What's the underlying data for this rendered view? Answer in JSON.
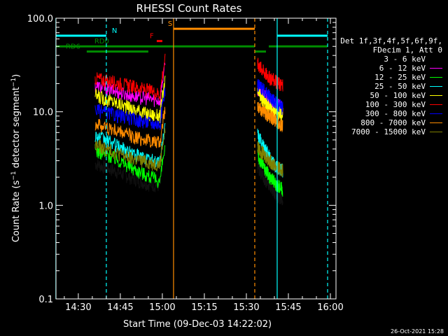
{
  "chart_data": {
    "type": "line",
    "title": "RHESSI Count Rates",
    "xlabel": "Start Time (09-Dec-03 14:22:02)",
    "ylabel": "Count Rate (s^-1 detector segment^-1)",
    "ylabel_parts": {
      "main": "Count Rate (s",
      "exp1": "−1",
      "mid": " detector segment",
      "exp2": "−1",
      "end": ")"
    },
    "x_scale": "time",
    "xlim": [
      "14:22:02",
      "16:02:00"
    ],
    "xticks": [
      "14:30",
      "14:45",
      "15:00",
      "15:15",
      "15:30",
      "15:45",
      "16:00"
    ],
    "y_scale": "log",
    "ylim": [
      0.1,
      100.0
    ],
    "yticks": [
      "0.1",
      "1.0",
      "10.0",
      "100.0"
    ],
    "grid": false,
    "legend_position": "right",
    "legend_header": [
      "Det 1f,3f,4f,5f,6f,9f,",
      "FDecim 1, Att 0"
    ],
    "series": [
      {
        "name": "3 - 6 keV",
        "color": "#000000",
        "values_start": [
          2.8,
          2.4,
          2.0,
          1.7,
          1.6
        ],
        "values_end": [
          2.6,
          2.0,
          1.6,
          1.3,
          1.2
        ]
      },
      {
        "name": "6 - 12 keV",
        "color": "#ff00ff",
        "values_start": [
          19,
          17,
          15,
          14,
          13
        ],
        "values_end": [
          18,
          15,
          13,
          12,
          11
        ]
      },
      {
        "name": "12 - 25 keV",
        "color": "#00ff00",
        "values_start": [
          3.9,
          3.3,
          2.6,
          2.1,
          1.7
        ],
        "values_end": [
          3.4,
          2.6,
          2.0,
          1.7,
          1.5
        ]
      },
      {
        "name": "25 - 50 keV",
        "color": "#00ffff",
        "values_start": [
          5.6,
          4.6,
          3.7,
          3.1,
          2.9
        ],
        "values_end": [
          5.8,
          4.2,
          3.2,
          2.6,
          2.4
        ]
      },
      {
        "name": "50 - 100 keV",
        "color": "#ffff00",
        "values_start": [
          15,
          13,
          11,
          9.5,
          9
        ],
        "values_end": [
          16,
          13,
          11,
          10,
          9.5
        ]
      },
      {
        "name": "100 - 300 keV",
        "color": "#ff0000",
        "values_start": [
          23,
          21,
          19,
          17,
          15
        ],
        "values_end": [
          33,
          27,
          23,
          21,
          19
        ]
      },
      {
        "name": "300 - 800 keV",
        "color": "#0000ff",
        "values_start": [
          10.5,
          9.5,
          8.5,
          7.8,
          7.2
        ],
        "values_end": [
          20,
          17,
          14.5,
          12.5,
          11
        ]
      },
      {
        "name": "800 - 7000 keV",
        "color": "#ff8c00",
        "values_start": [
          7.5,
          6.5,
          5.6,
          5.0,
          4.5
        ],
        "values_end": [
          12,
          10,
          9,
          8,
          7
        ]
      },
      {
        "name": "7000 - 15000 keV",
        "color": "#7f7f00",
        "values_start": [
          4.4,
          3.8,
          3.2,
          2.9,
          2.7
        ],
        "values_end": [
          4.2,
          3.5,
          3.0,
          2.6,
          2.4
        ]
      }
    ],
    "data_segments": [
      {
        "start": "14:36",
        "end": "15:01"
      },
      {
        "start": "15:34",
        "end": "15:43"
      }
    ],
    "annotations": [
      {
        "label": "N",
        "color": "#00ffff",
        "bars": [
          [
            "14:22",
            "14:40"
          ],
          [
            "15:41",
            "15:59"
          ]
        ],
        "level": 65
      },
      {
        "label": "S",
        "color": "#ff8c00",
        "bars": [
          [
            "15:04",
            "15:33"
          ]
        ],
        "level": 77
      },
      {
        "label": "F",
        "color": "#ff0000",
        "bars": [
          [
            "14:58",
            "15:00"
          ]
        ],
        "level": 57
      },
      {
        "label": "RD0",
        "color": "#008c00",
        "bars": [
          [
            "14:22",
            "15:33"
          ],
          [
            "15:38",
            "15:59"
          ]
        ],
        "level": 50
      },
      {
        "label": "RD6",
        "color": "#008c00",
        "bars": [
          [
            "14:33",
            "14:55"
          ],
          [
            "15:33",
            "15:37"
          ]
        ],
        "level": 44
      }
    ],
    "vertical_lines": [
      {
        "time": "14:22",
        "color": "#00ffff",
        "style": "solid"
      },
      {
        "time": "14:40",
        "color": "#00ffff",
        "style": "dashed"
      },
      {
        "time": "15:04",
        "color": "#ff8c00",
        "style": "solid"
      },
      {
        "time": "15:33",
        "color": "#ff8c00",
        "style": "dashed"
      },
      {
        "time": "15:41",
        "color": "#00ffff",
        "style": "solid"
      },
      {
        "time": "15:59",
        "color": "#00ffff",
        "style": "dashed"
      }
    ]
  },
  "footer": {
    "timestamp": "26-Oct-2021 15:28"
  }
}
